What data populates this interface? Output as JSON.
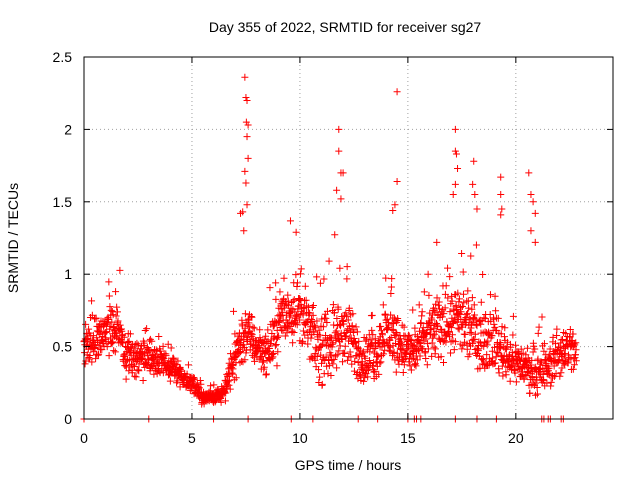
{
  "chart_data": {
    "type": "scatter",
    "title": "Day 355 of 2022, SRMTID for receiver sg27",
    "xlabel": "GPS time / hours",
    "ylabel": "SRMTID / TECUs",
    "xlim": [
      0,
      24.5
    ],
    "ylim": [
      0,
      2.5
    ],
    "x_ticks": [
      0,
      5,
      10,
      15,
      20
    ],
    "x_tick_labels": [
      "0",
      "5",
      "10",
      "15",
      "20"
    ],
    "y_ticks": [
      0,
      0.5,
      1,
      1.5,
      2,
      2.5
    ],
    "y_tick_labels": [
      "0",
      "0.5",
      "1",
      "1.5",
      "2",
      "2.5"
    ],
    "grid": true,
    "marker": "+",
    "series": [
      {
        "name": "SRMTID",
        "color": "#ff0000",
        "trend": {
          "x": [
            0,
            0.5,
            1,
            1.5,
            2,
            2.5,
            3,
            3.5,
            4,
            4.5,
            5,
            5.5,
            6,
            6.5,
            7,
            7.5,
            8,
            8.5,
            9,
            9.5,
            10,
            10.5,
            11,
            11.5,
            12,
            12.5,
            13,
            13.5,
            14,
            14.5,
            15,
            15.5,
            16,
            16.5,
            17,
            17.5,
            18,
            18.5,
            19,
            19.5,
            20,
            20.5,
            21,
            21.5,
            22,
            22.5,
            22.8
          ],
          "y": [
            0.5,
            0.55,
            0.6,
            0.65,
            0.45,
            0.42,
            0.42,
            0.4,
            0.35,
            0.3,
            0.25,
            0.15,
            0.15,
            0.18,
            0.45,
            0.6,
            0.5,
            0.45,
            0.65,
            0.75,
            0.75,
            0.6,
            0.45,
            0.55,
            0.6,
            0.5,
            0.4,
            0.45,
            0.6,
            0.55,
            0.45,
            0.5,
            0.6,
            0.65,
            0.7,
            0.65,
            0.6,
            0.55,
            0.55,
            0.45,
            0.4,
            0.35,
            0.3,
            0.35,
            0.45,
            0.5,
            0.45
          ],
          "spread": [
            0.25,
            0.25,
            0.3,
            0.3,
            0.2,
            0.18,
            0.15,
            0.15,
            0.12,
            0.1,
            0.1,
            0.07,
            0.06,
            0.08,
            0.25,
            0.3,
            0.2,
            0.2,
            0.3,
            0.35,
            0.3,
            0.3,
            0.3,
            0.35,
            0.35,
            0.3,
            0.25,
            0.25,
            0.3,
            0.3,
            0.25,
            0.3,
            0.3,
            0.35,
            0.35,
            0.35,
            0.3,
            0.3,
            0.3,
            0.25,
            0.2,
            0.2,
            0.18,
            0.2,
            0.25,
            0.25,
            0.2
          ]
        },
        "peaks": [
          {
            "x": 7.45,
            "y": 2.36
          },
          {
            "x": 7.5,
            "y": 2.22
          },
          {
            "x": 7.55,
            "y": 2.2
          },
          {
            "x": 7.52,
            "y": 2.05
          },
          {
            "x": 7.6,
            "y": 2.03
          },
          {
            "x": 7.55,
            "y": 1.95
          },
          {
            "x": 7.6,
            "y": 1.8
          },
          {
            "x": 7.45,
            "y": 1.71
          },
          {
            "x": 7.5,
            "y": 1.63
          },
          {
            "x": 7.55,
            "y": 1.48
          },
          {
            "x": 7.35,
            "y": 1.43
          },
          {
            "x": 7.25,
            "y": 1.42
          },
          {
            "x": 7.4,
            "y": 1.3
          },
          {
            "x": 11.8,
            "y": 2.0
          },
          {
            "x": 11.8,
            "y": 1.85
          },
          {
            "x": 11.9,
            "y": 1.7
          },
          {
            "x": 12.0,
            "y": 1.7
          },
          {
            "x": 11.7,
            "y": 1.58
          },
          {
            "x": 11.9,
            "y": 1.52
          },
          {
            "x": 14.5,
            "y": 2.26
          },
          {
            "x": 14.5,
            "y": 1.64
          },
          {
            "x": 14.4,
            "y": 1.48
          },
          {
            "x": 14.3,
            "y": 1.44
          },
          {
            "x": 17.2,
            "y": 2.0
          },
          {
            "x": 17.2,
            "y": 1.85
          },
          {
            "x": 17.25,
            "y": 1.83
          },
          {
            "x": 17.3,
            "y": 1.73
          },
          {
            "x": 17.2,
            "y": 1.62
          },
          {
            "x": 17.1,
            "y": 1.55
          },
          {
            "x": 18.05,
            "y": 1.78
          },
          {
            "x": 18.0,
            "y": 1.62
          },
          {
            "x": 18.1,
            "y": 1.55
          },
          {
            "x": 18.2,
            "y": 1.45
          },
          {
            "x": 19.3,
            "y": 1.67
          },
          {
            "x": 19.3,
            "y": 1.55
          },
          {
            "x": 19.35,
            "y": 1.45
          },
          {
            "x": 19.3,
            "y": 1.41
          },
          {
            "x": 20.6,
            "y": 1.7
          },
          {
            "x": 20.7,
            "y": 1.55
          },
          {
            "x": 20.8,
            "y": 1.5
          },
          {
            "x": 20.9,
            "y": 1.42
          },
          {
            "x": 20.7,
            "y": 1.3
          },
          {
            "x": 20.9,
            "y": 1.22
          }
        ],
        "zeros_x": [
          0.0,
          3.0,
          6.0,
          7.6,
          9.6,
          10.6,
          12.7,
          13.6,
          15.0,
          15.3,
          15.4,
          15.6,
          17.2,
          18.2,
          19.1,
          21.2,
          21.3,
          21.5,
          21.6,
          22.1,
          22.2
        ]
      }
    ]
  }
}
